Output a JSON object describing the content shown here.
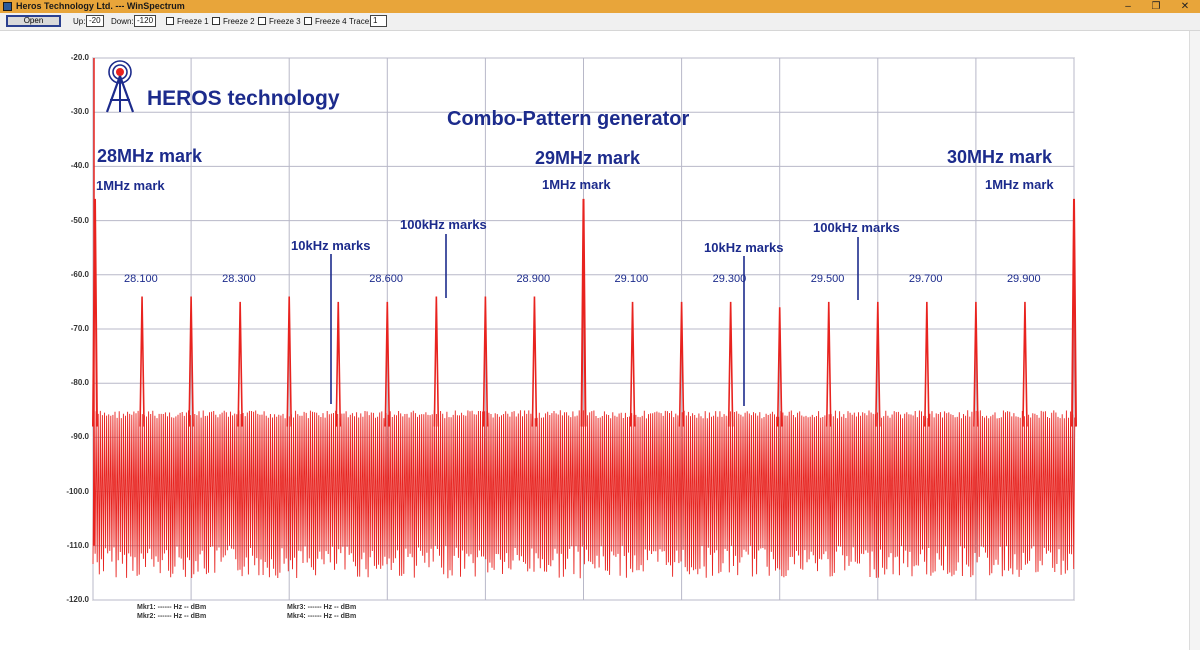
{
  "window": {
    "title": "Heros Technology Ltd.  ---  WinSpectrum"
  },
  "toolbar": {
    "open_label": "Open",
    "up_label": "Up:",
    "up_value": "-20",
    "down_label": "Down:",
    "down_value": "-120",
    "freeze1_label": "Freeze 1",
    "freeze2_label": "Freeze 2",
    "freeze3_label": "Freeze 3",
    "freeze4_label": "Freeze 4",
    "trace_label": "Trace:",
    "trace_value": "1"
  },
  "logo": {
    "text": "HEROS technology"
  },
  "chart_title": "Combo-Pattern generator",
  "annotations": {
    "mhz28": "28MHz mark",
    "mhz29": "29MHz mark",
    "mhz30": "30MHz mark",
    "mark1_a": "1MHz mark",
    "mark1_b": "1MHz mark",
    "mark1_c": "1MHz mark",
    "khz10_a": "10kHz marks",
    "khz10_b": "10kHz marks",
    "khz100_a": "100kHz marks",
    "khz100_b": "100kHz marks"
  },
  "markers": {
    "mkr1": "Mkr1: ------ Hz   -- dBm",
    "mkr2": "Mkr2: ------ Hz   -- dBm",
    "mkr3": "Mkr3: ------ Hz   -- dBm",
    "mkr4": "Mkr4: ------ Hz   -- dBm"
  },
  "chart_data": {
    "type": "line",
    "ylim": [
      -120,
      -20
    ],
    "y_ticks": [
      "-20.0",
      "-30.0",
      "-40.0",
      "-50.0",
      "-60.0",
      "-70.0",
      "-80.0",
      "-90.0",
      "-100.0",
      "-110.0",
      "-120.0"
    ],
    "freq_labels": [
      "28.100",
      "28.300",
      "28.600",
      "28.900",
      "29.100",
      "29.300",
      "29.500",
      "29.700",
      "29.900"
    ],
    "xlim_mhz": [
      28.0,
      30.0
    ],
    "grid": true,
    "trace_color": "#e8231f",
    "series": [
      {
        "peaks_mhz": [
          28.0,
          29.0,
          30.0
        ],
        "peak_dbm": [
          -46,
          -46,
          -46
        ]
      },
      {
        "peaks_mhz": [
          28.1,
          28.2,
          28.3,
          28.4,
          28.5,
          28.6,
          28.7,
          28.8,
          28.9,
          29.1,
          29.2,
          29.3,
          29.4,
          29.5,
          29.6,
          29.7,
          29.8,
          29.9
        ],
        "peak_dbm": [
          -64,
          -64,
          -65,
          -64,
          -65,
          -65,
          -64,
          -64,
          -64,
          -65,
          -65,
          -65,
          -66,
          -65,
          -65,
          -65,
          -65,
          -65
        ]
      }
    ],
    "noise_floor_dbm": [
      -85,
      -113
    ]
  }
}
